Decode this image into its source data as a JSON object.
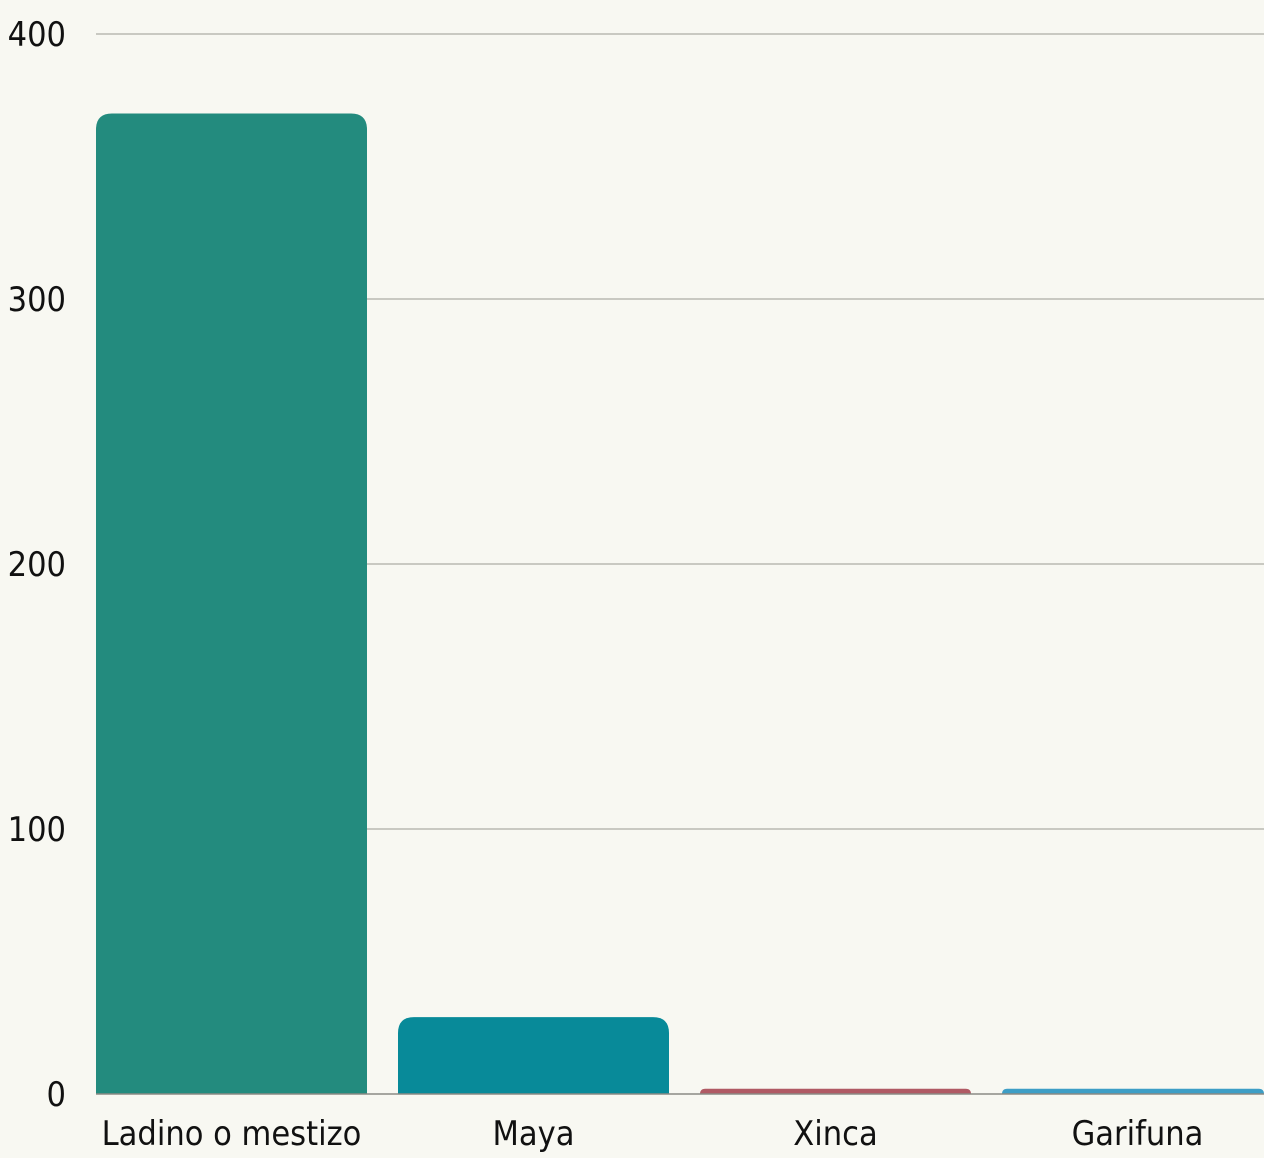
{
  "chart_data": {
    "type": "bar",
    "title": "",
    "xlabel": "",
    "ylabel": "",
    "categories": [
      "Ladino o mestizo",
      "Maya",
      "Xinca",
      "Garifuna"
    ],
    "values": [
      370,
      29,
      2,
      2
    ],
    "colors": [
      "#238b7e",
      "#088a99",
      "#b05a64",
      "#3d9ec6"
    ],
    "ylim": [
      0,
      400
    ],
    "yticks": [
      0,
      100,
      200,
      300,
      400
    ],
    "grid": true,
    "legend": "none"
  }
}
